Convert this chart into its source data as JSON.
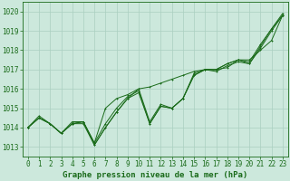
{
  "title": "Graphe pression niveau de la mer (hPa)",
  "background_color": "#cce8dc",
  "grid_color": "#aacfc0",
  "line_color": "#1a6b1a",
  "marker_color": "#1a6b1a",
  "xlim": [
    -0.5,
    23.5
  ],
  "ylim": [
    1012.5,
    1020.5
  ],
  "yticks": [
    1013,
    1014,
    1015,
    1016,
    1017,
    1018,
    1019,
    1020
  ],
  "xticks": [
    0,
    1,
    2,
    3,
    4,
    5,
    6,
    7,
    8,
    9,
    10,
    11,
    12,
    13,
    14,
    15,
    16,
    17,
    18,
    19,
    20,
    21,
    22,
    23
  ],
  "series": [
    [
      1014.0,
      1014.5,
      1014.2,
      1013.7,
      1014.2,
      1014.2,
      1013.1,
      1014.0,
      1014.8,
      1015.5,
      1015.8,
      1014.2,
      1015.1,
      1015.0,
      1015.5,
      1016.7,
      1017.0,
      1017.0,
      1017.1,
      1017.5,
      1017.3,
      1018.2,
      1019.1,
      1019.8
    ],
    [
      1014.0,
      1014.5,
      1014.2,
      1013.7,
      1014.2,
      1014.3,
      1013.2,
      1014.2,
      1015.0,
      1015.6,
      1015.9,
      1014.2,
      1015.1,
      1015.0,
      1015.5,
      1016.8,
      1017.0,
      1016.9,
      1017.2,
      1017.4,
      1017.3,
      1018.1,
      1019.0,
      1019.8
    ],
    [
      1014.0,
      1014.6,
      1014.2,
      1013.7,
      1014.3,
      1014.3,
      1013.1,
      1014.0,
      1014.8,
      1015.5,
      1016.0,
      1014.3,
      1015.2,
      1015.0,
      1015.5,
      1016.7,
      1017.0,
      1017.0,
      1017.3,
      1017.5,
      1017.4,
      1018.3,
      1019.1,
      1019.9
    ],
    [
      1014.0,
      1014.5,
      1014.2,
      1013.7,
      1014.2,
      1014.3,
      1013.2,
      1015.0,
      1015.5,
      1015.7,
      1016.0,
      1016.1,
      1016.3,
      1016.5,
      1016.7,
      1016.9,
      1017.0,
      1017.0,
      1017.3,
      1017.5,
      1017.5,
      1018.0,
      1018.5,
      1019.8
    ]
  ],
  "xlabel_fontsize": 6.5,
  "tick_fontsize": 5.5,
  "linewidth": 0.7,
  "markersize": 1.8
}
